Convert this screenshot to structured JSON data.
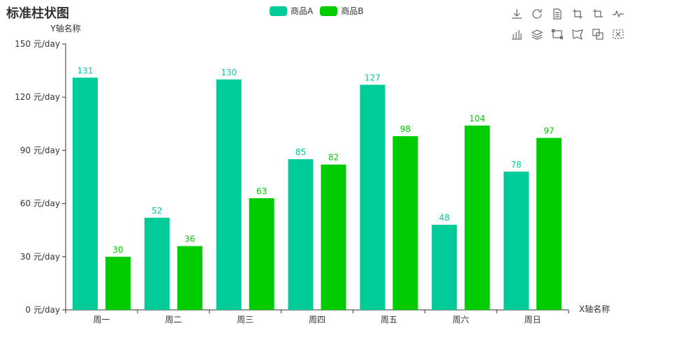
{
  "chart_data": {
    "type": "bar",
    "title": "标准柱状图",
    "xlabel": "X轴名称",
    "ylabel": "Y轴名称",
    "y_unit_suffix": " 元/day",
    "ylim": [
      0,
      150
    ],
    "yticks": [
      0,
      30,
      60,
      90,
      120,
      150
    ],
    "categories": [
      "周一",
      "周二",
      "周三",
      "周四",
      "周五",
      "周六",
      "周日"
    ],
    "series": [
      {
        "name": "商品A",
        "color": "#00cc99",
        "values": [
          131,
          52,
          130,
          85,
          127,
          48,
          78
        ]
      },
      {
        "name": "商品B",
        "color": "#00cc00",
        "values": [
          30,
          36,
          63,
          82,
          98,
          104,
          97
        ]
      }
    ],
    "legend_position": "top-center",
    "grid": false
  },
  "toolbox": {
    "row1": [
      "download-icon",
      "refresh-icon",
      "data-view-icon",
      "zoom-icon",
      "zoom-reset-icon",
      "line-chart-icon"
    ],
    "row2": [
      "bar-chart-icon",
      "stack-icon",
      "rect-select-icon",
      "polygon-select-icon",
      "keep-select-icon",
      "clear-select-icon"
    ]
  }
}
